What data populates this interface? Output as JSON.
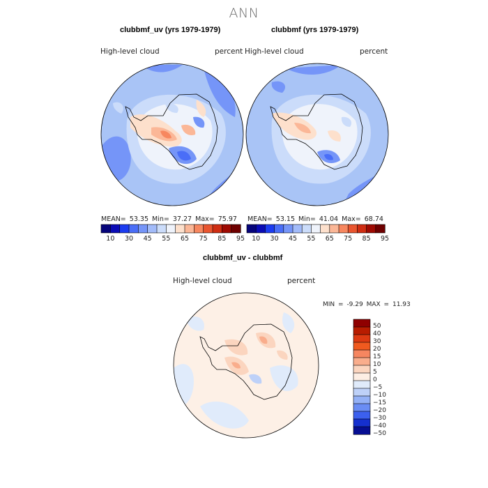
{
  "page_title": "ANN",
  "panels": [
    {
      "title": "clubbmf_uv (yrs 1979-1979)",
      "left_label": "High-level cloud",
      "right_label": "percent",
      "stats": {
        "mean_label": "MEAN=",
        "mean": "53.35",
        "min_label": "Min=",
        "min": "37.27",
        "max_label": "Max=",
        "max": "75.97"
      },
      "colorbar_ticks": [
        "10",
        "30",
        "45",
        "55",
        "65",
        "75",
        "85",
        "95"
      ]
    },
    {
      "title": "clubbmf (yrs 1979-1979)",
      "left_label": "High-level cloud",
      "right_label": "percent",
      "stats": {
        "mean_label": "MEAN=",
        "mean": "53.15",
        "min_label": "Min=",
        "min": "41.04",
        "max_label": "Max=",
        "max": "68.74"
      },
      "colorbar_ticks": [
        "10",
        "30",
        "45",
        "55",
        "65",
        "75",
        "85",
        "95"
      ]
    },
    {
      "title": "clubbmf_uv - clubbmf",
      "left_label": "High-level cloud",
      "right_label": "percent",
      "stats": {
        "min_label": "MIN =",
        "min": "-9.29",
        "max_label": "MAX =",
        "max": "11.93"
      },
      "colorbar_ticks": [
        "50",
        "40",
        "30",
        "20",
        "15",
        "10",
        "5",
        "0",
        "−5",
        "−10",
        "−15",
        "−20",
        "−30",
        "−40",
        "−50"
      ]
    }
  ],
  "colors": {
    "abs_scale": [
      "#06047a",
      "#0a0bb5",
      "#1c3cf0",
      "#4a6ef7",
      "#7595f8",
      "#a2bbf9",
      "#cbdcfa",
      "#eff3fb",
      "#fde0cc",
      "#fbb797",
      "#f7875f",
      "#e9552f",
      "#cf2d12",
      "#9e0a02",
      "#6e0000"
    ],
    "diff_scale": [
      "#8f0000",
      "#b81c00",
      "#dd3a12",
      "#f05a1f",
      "#f68660",
      "#f9ad8c",
      "#fbd5bf",
      "#fdeee4",
      "#e0ebfb",
      "#bed1f8",
      "#94b1f6",
      "#6a8df4",
      "#3c60ee",
      "#1530cf",
      "#060e92"
    ],
    "abs_base": "#a9c4f6",
    "diff_base": "#fdf0e6"
  }
}
